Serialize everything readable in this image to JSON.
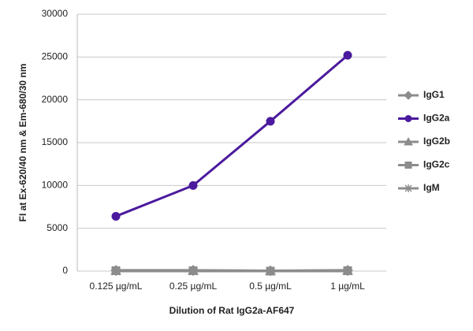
{
  "chart_data": {
    "type": "line",
    "x_label": "Dilution of Rat IgG2a-AF647",
    "y_label": "FI at Ex-620/40 nm & Em-680/30 nm",
    "categories": [
      "0.125 µg/mL",
      "0.25 µg/mL",
      "0.5 µg/mL",
      "1 µg/mL"
    ],
    "series": [
      {
        "name": "IgG1",
        "color": "#8c8c8c",
        "marker": "diamond",
        "values": [
          100,
          100,
          50,
          100
        ]
      },
      {
        "name": "IgG2a",
        "color": "#4b1a9e",
        "marker": "circle",
        "values": [
          6400,
          10000,
          17500,
          25200
        ]
      },
      {
        "name": "IgG2b",
        "color": "#8c8c8c",
        "marker": "triangle",
        "values": [
          80,
          80,
          30,
          80
        ]
      },
      {
        "name": "IgG2c",
        "color": "#8c8c8c",
        "marker": "square",
        "values": [
          50,
          50,
          0,
          50
        ]
      },
      {
        "name": "IgM",
        "color": "#8c8c8c",
        "marker": "star",
        "values": [
          0,
          0,
          0,
          0
        ]
      }
    ],
    "ylim": [
      0,
      30000
    ],
    "yticks": [
      0,
      5000,
      10000,
      15000,
      20000,
      25000,
      30000
    ],
    "grid": true,
    "legend": "right"
  }
}
